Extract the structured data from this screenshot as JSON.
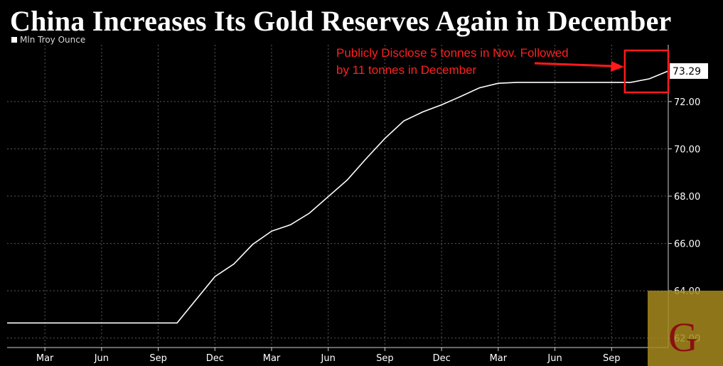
{
  "title": "China Increases Its Gold Reserves Again in December",
  "legend": {
    "label": "Mln Troy Ounce",
    "color": "#ffffff"
  },
  "annotation": {
    "line1": "Publicly Disclose 5 tonnes in Nov. Followed",
    "line2": "by 11 tonnes in December",
    "color": "#ff1a1a"
  },
  "value_label": "73.29",
  "logo": {
    "letter": "G",
    "background": "#a8891f",
    "letter_color": "#8b1010"
  },
  "chart_data": {
    "type": "line",
    "title": "China Increases Its Gold Reserves Again in December",
    "xlabel": "",
    "ylabel": "",
    "ylim": [
      61.6,
      74.4
    ],
    "yticks": [
      62.0,
      64.0,
      66.0,
      68.0,
      70.0,
      72.0
    ],
    "ytick_labels": [
      "62.00",
      "64.00",
      "66.00",
      "68.00",
      "70.00",
      "72.00"
    ],
    "xtick_labels": [
      "Mar",
      "Jun",
      "Sep",
      "Dec",
      "Mar",
      "Jun",
      "Sep",
      "Dec",
      "Mar",
      "Jun",
      "Sep"
    ],
    "grid": true,
    "legend_position": "top-left",
    "series": [
      {
        "name": "Mln Troy Ounce",
        "color": "#ffffff",
        "x": [
          0,
          1,
          2,
          3,
          4,
          5,
          6,
          7,
          8,
          9,
          10,
          11,
          12,
          13,
          14,
          15,
          16,
          17,
          18,
          19,
          20,
          21,
          22,
          23,
          24,
          25,
          26,
          27,
          28,
          29,
          30,
          31,
          32,
          33,
          34,
          35
        ],
        "values": [
          62.64,
          62.64,
          62.64,
          62.64,
          62.64,
          62.64,
          62.64,
          62.64,
          62.64,
          62.64,
          63.62,
          64.6,
          65.13,
          65.96,
          66.52,
          66.79,
          67.28,
          67.98,
          68.68,
          69.58,
          70.44,
          71.18,
          71.56,
          71.86,
          72.21,
          72.58,
          72.77,
          72.81,
          72.81,
          72.81,
          72.81,
          72.81,
          72.81,
          72.81,
          72.96,
          73.29
        ]
      }
    ]
  }
}
